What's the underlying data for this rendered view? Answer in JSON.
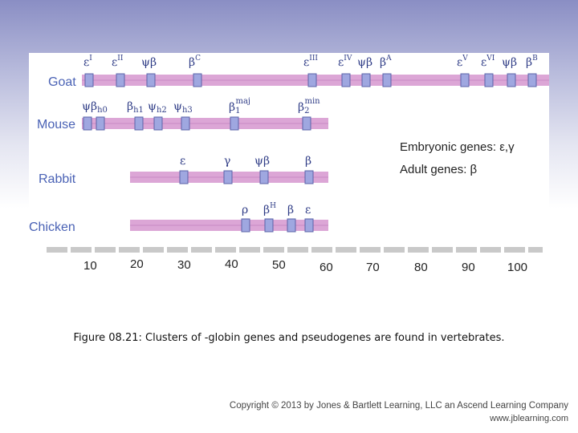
{
  "diagram": {
    "species": [
      {
        "name": "Goat",
        "genes": [
          "εI",
          "εII",
          "ψβ",
          "βC",
          "εIII",
          "εIV",
          "ψβ",
          "βA",
          "εV",
          "εVI",
          "ψβ",
          "βB"
        ]
      },
      {
        "name": "Mouse",
        "genes": [
          "ψβh0",
          "βh1",
          "ψh2",
          "ψh3",
          "β1maj",
          "β2min"
        ]
      },
      {
        "name": "Rabbit",
        "genes": [
          "ε",
          "γ",
          "ψβ",
          "β"
        ]
      },
      {
        "name": "Chicken",
        "genes": [
          "ρ",
          "βH",
          "β",
          "ε"
        ]
      }
    ],
    "legend": {
      "embryonic": "Embryonic genes: ε,γ",
      "adult": "Adult genes: β"
    },
    "scale_ticks": [
      "10",
      "20",
      "30",
      "40",
      "50",
      "60",
      "70",
      "80",
      "90",
      "100"
    ],
    "colors": {
      "chromosome": "#dca6d6",
      "chromosome_line": "#c88bc4",
      "gene_box": "#9fa7e0",
      "gene_box_border": "#5b63a8",
      "label": "#4a62b5",
      "scale": "#c9c9c9"
    }
  },
  "caption": "Figure 08.21: Clusters of -globin genes and pseudogenes are found in vertebrates.",
  "copyright": {
    "line1": "Copyright © 2013 by Jones & Bartlett Learning, LLC an Ascend Learning Company",
    "line2": "www.jblearning.com"
  }
}
